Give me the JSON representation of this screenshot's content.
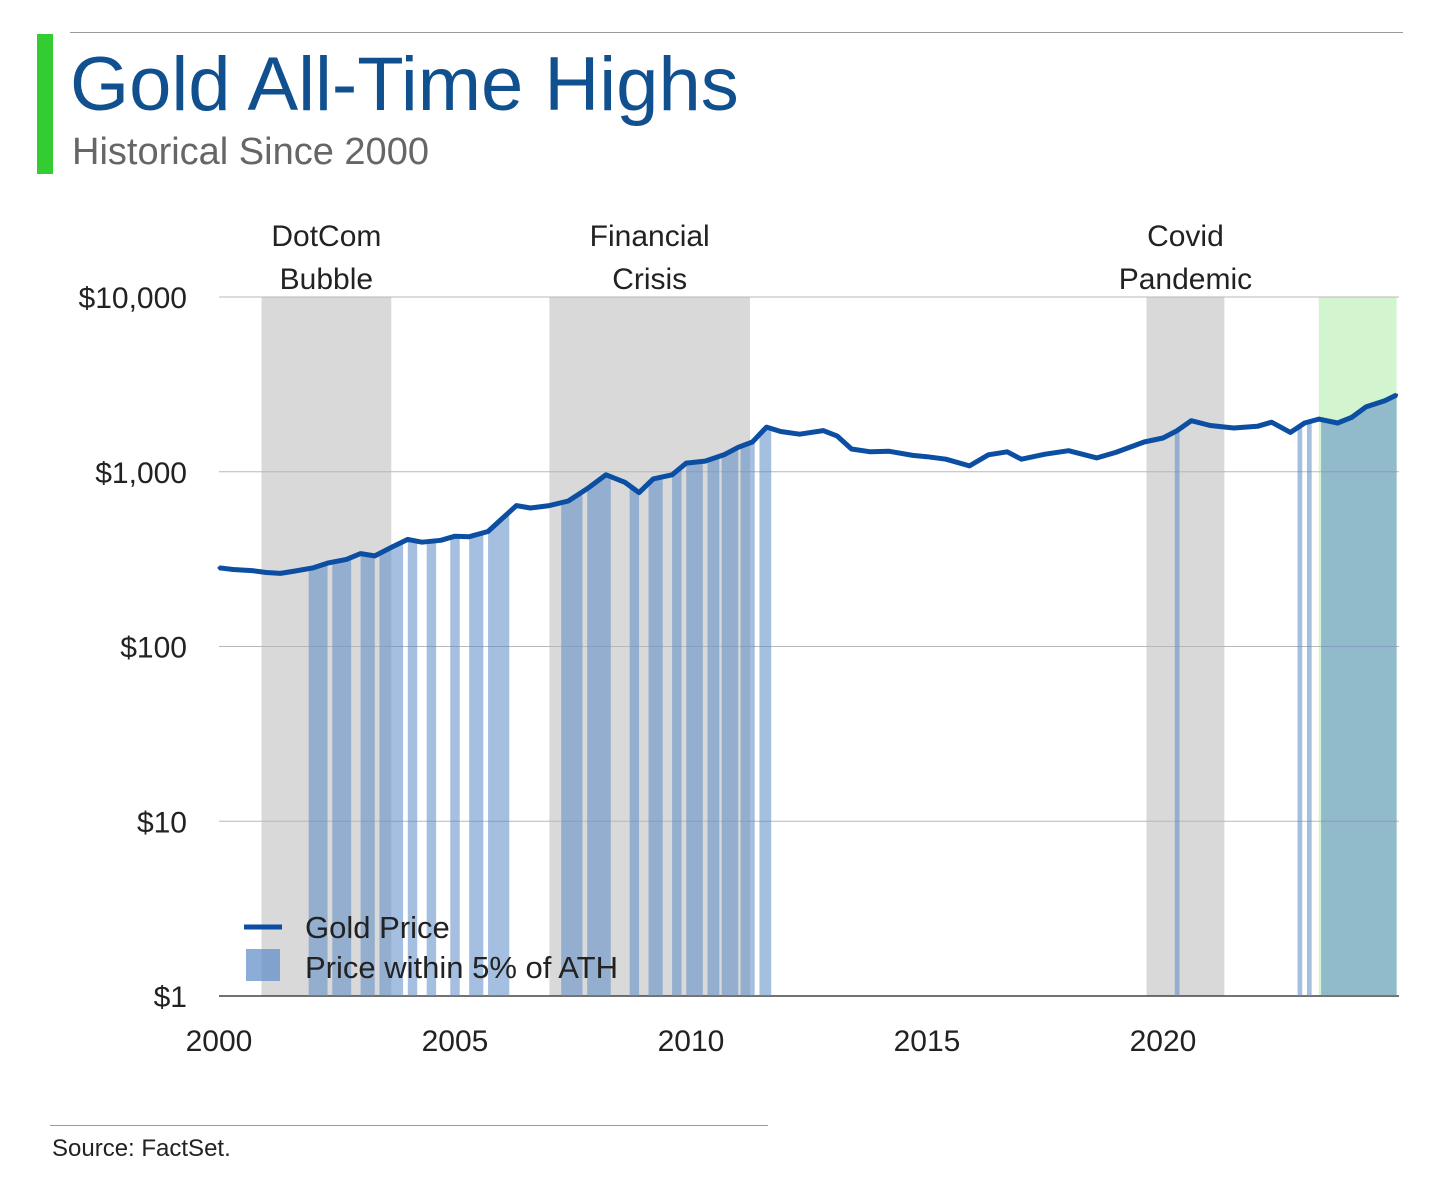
{
  "header": {
    "title": "Gold All-Time Highs",
    "subtitle": "Historical Since 2000",
    "accent_color": "#33cc33"
  },
  "footer": {
    "source": "Source: FactSet."
  },
  "chart_data": {
    "type": "line",
    "title": "Gold All-Time Highs",
    "subtitle": "Historical Since 2000",
    "x_axis": {
      "min": 2000,
      "max": 2025,
      "ticks": [
        2000,
        2005,
        2010,
        2015,
        2020
      ],
      "tick_labels": [
        "2000",
        "2005",
        "2010",
        "2015",
        "2020"
      ]
    },
    "y_axis": {
      "scale": "log",
      "min": 1,
      "max": 10000,
      "ticks": [
        1,
        10,
        100,
        1000,
        10000
      ],
      "tick_labels": [
        "$1",
        "$10",
        "$100",
        "$1,000",
        "$10,000"
      ],
      "grid": true
    },
    "series": [
      {
        "name": "Gold Price",
        "color": "#0b4ea2",
        "points": [
          [
            2000.0,
            282
          ],
          [
            2000.3,
            276
          ],
          [
            2000.7,
            272
          ],
          [
            2001.0,
            265
          ],
          [
            2001.3,
            262
          ],
          [
            2001.6,
            270
          ],
          [
            2002.0,
            282
          ],
          [
            2002.3,
            300
          ],
          [
            2002.7,
            315
          ],
          [
            2003.0,
            340
          ],
          [
            2003.3,
            330
          ],
          [
            2003.7,
            375
          ],
          [
            2004.0,
            410
          ],
          [
            2004.3,
            395
          ],
          [
            2004.7,
            405
          ],
          [
            2005.0,
            428
          ],
          [
            2005.3,
            425
          ],
          [
            2005.7,
            455
          ],
          [
            2006.0,
            540
          ],
          [
            2006.3,
            640
          ],
          [
            2006.6,
            620
          ],
          [
            2007.0,
            640
          ],
          [
            2007.4,
            680
          ],
          [
            2007.8,
            800
          ],
          [
            2008.2,
            960
          ],
          [
            2008.6,
            870
          ],
          [
            2008.9,
            760
          ],
          [
            2009.2,
            910
          ],
          [
            2009.6,
            960
          ],
          [
            2009.9,
            1120
          ],
          [
            2010.3,
            1150
          ],
          [
            2010.7,
            1250
          ],
          [
            2011.0,
            1380
          ],
          [
            2011.3,
            1480
          ],
          [
            2011.6,
            1800
          ],
          [
            2011.9,
            1700
          ],
          [
            2012.3,
            1640
          ],
          [
            2012.8,
            1720
          ],
          [
            2013.1,
            1600
          ],
          [
            2013.4,
            1350
          ],
          [
            2013.8,
            1300
          ],
          [
            2014.2,
            1310
          ],
          [
            2014.7,
            1240
          ],
          [
            2015.0,
            1220
          ],
          [
            2015.4,
            1180
          ],
          [
            2015.9,
            1080
          ],
          [
            2016.3,
            1250
          ],
          [
            2016.7,
            1300
          ],
          [
            2017.0,
            1180
          ],
          [
            2017.5,
            1260
          ],
          [
            2018.0,
            1320
          ],
          [
            2018.6,
            1200
          ],
          [
            2019.0,
            1290
          ],
          [
            2019.6,
            1480
          ],
          [
            2020.0,
            1560
          ],
          [
            2020.3,
            1720
          ],
          [
            2020.6,
            1960
          ],
          [
            2021.0,
            1840
          ],
          [
            2021.5,
            1780
          ],
          [
            2022.0,
            1820
          ],
          [
            2022.3,
            1920
          ],
          [
            2022.7,
            1680
          ],
          [
            2023.0,
            1900
          ],
          [
            2023.3,
            2000
          ],
          [
            2023.7,
            1900
          ],
          [
            2024.0,
            2050
          ],
          [
            2024.3,
            2350
          ],
          [
            2024.7,
            2550
          ],
          [
            2024.95,
            2750
          ]
        ]
      },
      {
        "name": "Price within 5% of ATH",
        "color": "#5b8ac6",
        "ranges": [
          [
            2001.9,
            2002.3
          ],
          [
            2002.4,
            2002.8
          ],
          [
            2003.0,
            2003.3
          ],
          [
            2003.4,
            2003.9
          ],
          [
            2004.0,
            2004.2
          ],
          [
            2004.4,
            2004.6
          ],
          [
            2004.9,
            2005.1
          ],
          [
            2005.3,
            2005.6
          ],
          [
            2005.7,
            2006.15
          ],
          [
            2007.25,
            2007.7
          ],
          [
            2007.8,
            2008.3
          ],
          [
            2008.7,
            2008.9
          ],
          [
            2009.1,
            2009.4
          ],
          [
            2009.6,
            2009.8
          ],
          [
            2009.9,
            2010.25
          ],
          [
            2010.35,
            2010.6
          ],
          [
            2010.65,
            2011.0
          ],
          [
            2011.05,
            2011.35
          ],
          [
            2011.45,
            2011.7
          ],
          [
            2020.25,
            2020.35
          ],
          [
            2022.85,
            2022.95
          ],
          [
            2023.05,
            2023.15
          ],
          [
            2023.35,
            2024.95
          ]
        ]
      }
    ],
    "shaded_periods": [
      {
        "label_line1": "DotCom",
        "label_line2": "Bubble",
        "start": 2000.9,
        "end": 2003.65,
        "color": "#d9d9d9"
      },
      {
        "label_line1": "Financial",
        "label_line2": "Crisis",
        "start": 2007.0,
        "end": 2011.25,
        "color": "#d9d9d9"
      },
      {
        "label_line1": "Covid",
        "label_line2": "Pandemic",
        "start": 2019.65,
        "end": 2021.3,
        "color": "#d9d9d9"
      },
      {
        "label_line1": "",
        "label_line2": "",
        "start": 2023.3,
        "end": 2024.95,
        "color": "#d2f4cf"
      }
    ],
    "legend": {
      "position": "bottom-left",
      "entries": [
        {
          "label": "Gold Price",
          "kind": "line",
          "color": "#0b4ea2"
        },
        {
          "label": "Price within 5% of ATH",
          "kind": "box",
          "color": "#5b8ac6"
        }
      ]
    }
  }
}
